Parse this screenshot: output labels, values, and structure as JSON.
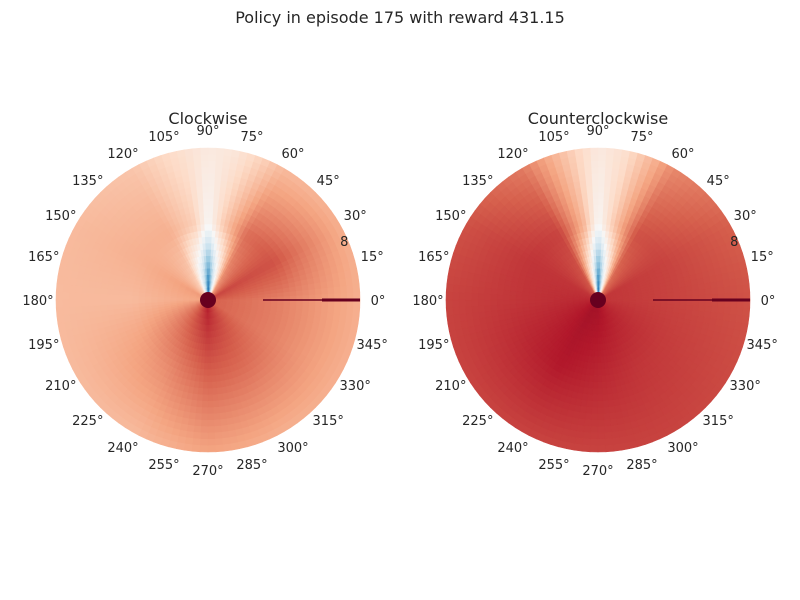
{
  "figure_title": "Policy in episode 175 with reward 431.15",
  "chart_data": [
    {
      "type": "heatmap",
      "projection": "polar",
      "title": "Clockwise",
      "theta_ticks_deg": [
        0,
        15,
        30,
        45,
        60,
        75,
        90,
        105,
        120,
        135,
        150,
        165,
        180,
        195,
        210,
        225,
        240,
        255,
        270,
        285,
        300,
        315,
        330,
        345
      ],
      "theta_tick_labels": [
        "0°",
        "15°",
        "30°",
        "45°",
        "60°",
        "75°",
        "90°",
        "105°",
        "120°",
        "135°",
        "150°",
        "165°",
        "180°",
        "195°",
        "210°",
        "225°",
        "240°",
        "255°",
        "270°",
        "285°",
        "300°",
        "315°",
        "330°",
        "345°"
      ],
      "r_tick_label": "8",
      "r_tick_value": 8,
      "r_tick_angle_deg": 22.5,
      "colormap": "RdBu_r",
      "grid": false,
      "value_scale": "approx 0 (blue) .. 1 (dark red)",
      "radial_profile": {
        "description": "approximate smooth value field over (angle, radius), shown as per-angle levels at inner, middle and outer radius",
        "angles_deg": [
          0,
          30,
          60,
          80,
          90,
          100,
          120,
          150,
          180,
          210,
          240,
          270,
          300,
          330,
          360
        ],
        "inner": [
          0.8,
          0.84,
          0.7,
          0.3,
          0.05,
          0.3,
          0.6,
          0.72,
          0.7,
          0.78,
          0.85,
          0.9,
          0.85,
          0.8,
          0.8
        ],
        "middle": [
          0.75,
          0.82,
          0.78,
          0.62,
          0.5,
          0.62,
          0.68,
          0.68,
          0.66,
          0.7,
          0.74,
          0.8,
          0.78,
          0.75,
          0.75
        ],
        "outer": [
          0.68,
          0.68,
          0.66,
          0.56,
          0.55,
          0.58,
          0.64,
          0.66,
          0.66,
          0.66,
          0.66,
          0.7,
          0.68,
          0.68,
          0.68
        ]
      },
      "markers": [
        {
          "label": "",
          "kind": "center-dot",
          "color": "#67001f"
        },
        {
          "label": "",
          "kind": "zero-angle-line",
          "color": "#67001f"
        }
      ]
    },
    {
      "type": "heatmap",
      "projection": "polar",
      "title": "Counterclockwise",
      "theta_ticks_deg": [
        0,
        15,
        30,
        45,
        60,
        75,
        90,
        105,
        120,
        135,
        150,
        165,
        180,
        195,
        210,
        225,
        240,
        255,
        270,
        285,
        300,
        315,
        330,
        345
      ],
      "theta_tick_labels": [
        "0°",
        "15°",
        "30°",
        "45°",
        "60°",
        "75°",
        "90°",
        "105°",
        "120°",
        "135°",
        "150°",
        "165°",
        "180°",
        "195°",
        "210°",
        "225°",
        "240°",
        "255°",
        "270°",
        "285°",
        "300°",
        "315°",
        "330°",
        "345°"
      ],
      "r_tick_label": "8",
      "r_tick_value": 8,
      "r_tick_angle_deg": 22.5,
      "colormap": "RdBu_r",
      "grid": false,
      "value_scale": "approx 0 (blue) .. 1 (dark red)",
      "radial_profile": {
        "description": "approximate smooth value field over (angle, radius), shown as per-angle levels at inner, middle and outer radius",
        "angles_deg": [
          0,
          30,
          60,
          80,
          90,
          100,
          120,
          150,
          180,
          210,
          240,
          270,
          300,
          330,
          360
        ],
        "inner": [
          0.86,
          0.86,
          0.76,
          0.35,
          0.05,
          0.4,
          0.8,
          0.86,
          0.88,
          0.9,
          0.92,
          0.92,
          0.9,
          0.88,
          0.86
        ],
        "middle": [
          0.84,
          0.84,
          0.82,
          0.62,
          0.5,
          0.66,
          0.84,
          0.86,
          0.86,
          0.88,
          0.9,
          0.88,
          0.86,
          0.85,
          0.84
        ],
        "outer": [
          0.82,
          0.8,
          0.74,
          0.58,
          0.55,
          0.62,
          0.76,
          0.82,
          0.84,
          0.84,
          0.84,
          0.84,
          0.84,
          0.83,
          0.82
        ]
      },
      "markers": [
        {
          "label": "",
          "kind": "center-dot",
          "color": "#67001f"
        },
        {
          "label": "",
          "kind": "zero-angle-line",
          "color": "#67001f"
        }
      ]
    }
  ]
}
